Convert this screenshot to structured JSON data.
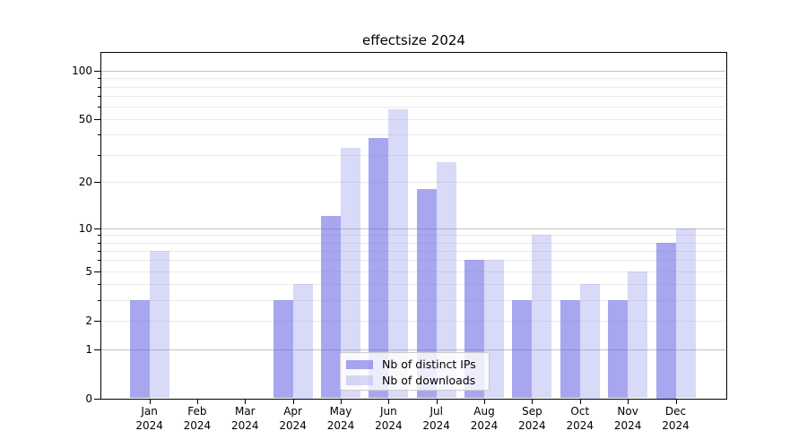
{
  "title": "effectsize 2024",
  "legend": {
    "items": [
      {
        "label": "Nb of distinct IPs",
        "series": "ips"
      },
      {
        "label": "Nb of downloads",
        "series": "downloads"
      }
    ]
  },
  "colors": {
    "ips_bar": "rgba(103,103,229,0.58)",
    "downloads_bar": "rgba(140,140,234,0.33)",
    "grid_major": "#c0c0c0",
    "grid_minor": "#ebebeb",
    "axis": "#000000",
    "text": "#000000",
    "legend_border": "#cccccc",
    "legend_bg": "rgba(255,255,255,0.8)"
  },
  "axes": {
    "y_tick_values": [
      100,
      50,
      20,
      10,
      5,
      2,
      1,
      0
    ],
    "y_tick_labels": [
      "100",
      "50",
      "20",
      "10",
      "5",
      "2",
      "1",
      "0"
    ],
    "y_minor_values": [
      2,
      3,
      4,
      5,
      6,
      7,
      8,
      9,
      20,
      30,
      40,
      50,
      60,
      70,
      80,
      90
    ],
    "y_major_grid_values": [
      1,
      10,
      100
    ],
    "x_tick_labels": [
      {
        "month": "Jan",
        "year": "2024"
      },
      {
        "month": "Feb",
        "year": "2024"
      },
      {
        "month": "Mar",
        "year": "2024"
      },
      {
        "month": "Apr",
        "year": "2024"
      },
      {
        "month": "May",
        "year": "2024"
      },
      {
        "month": "Jun",
        "year": "2024"
      },
      {
        "month": "Jul",
        "year": "2024"
      },
      {
        "month": "Aug",
        "year": "2024"
      },
      {
        "month": "Sep",
        "year": "2024"
      },
      {
        "month": "Oct",
        "year": "2024"
      },
      {
        "month": "Nov",
        "year": "2024"
      },
      {
        "month": "Dec",
        "year": "2024"
      }
    ]
  },
  "chart_data": {
    "type": "bar",
    "title": "effectsize 2024",
    "categories": [
      "Jan 2024",
      "Feb 2024",
      "Mar 2024",
      "Apr 2024",
      "May 2024",
      "Jun 2024",
      "Jul 2024",
      "Aug 2024",
      "Sep 2024",
      "Oct 2024",
      "Nov 2024",
      "Dec 2024"
    ],
    "series": [
      {
        "name": "Nb of distinct IPs",
        "key": "ips",
        "values": [
          3,
          0,
          0,
          3,
          12,
          38,
          18,
          6,
          3,
          3,
          3,
          8
        ]
      },
      {
        "name": "Nb of downloads",
        "key": "downloads",
        "values": [
          7,
          0,
          0,
          4,
          33,
          58,
          27,
          6,
          9,
          4,
          5,
          10
        ]
      }
    ],
    "xlabel": "",
    "ylabel": "",
    "yscale": "log1p",
    "ylim": [
      0,
      129
    ],
    "y_ticks": [
      0,
      1,
      2,
      5,
      10,
      20,
      50,
      100
    ],
    "grid": true,
    "legend_position": "lower center"
  }
}
